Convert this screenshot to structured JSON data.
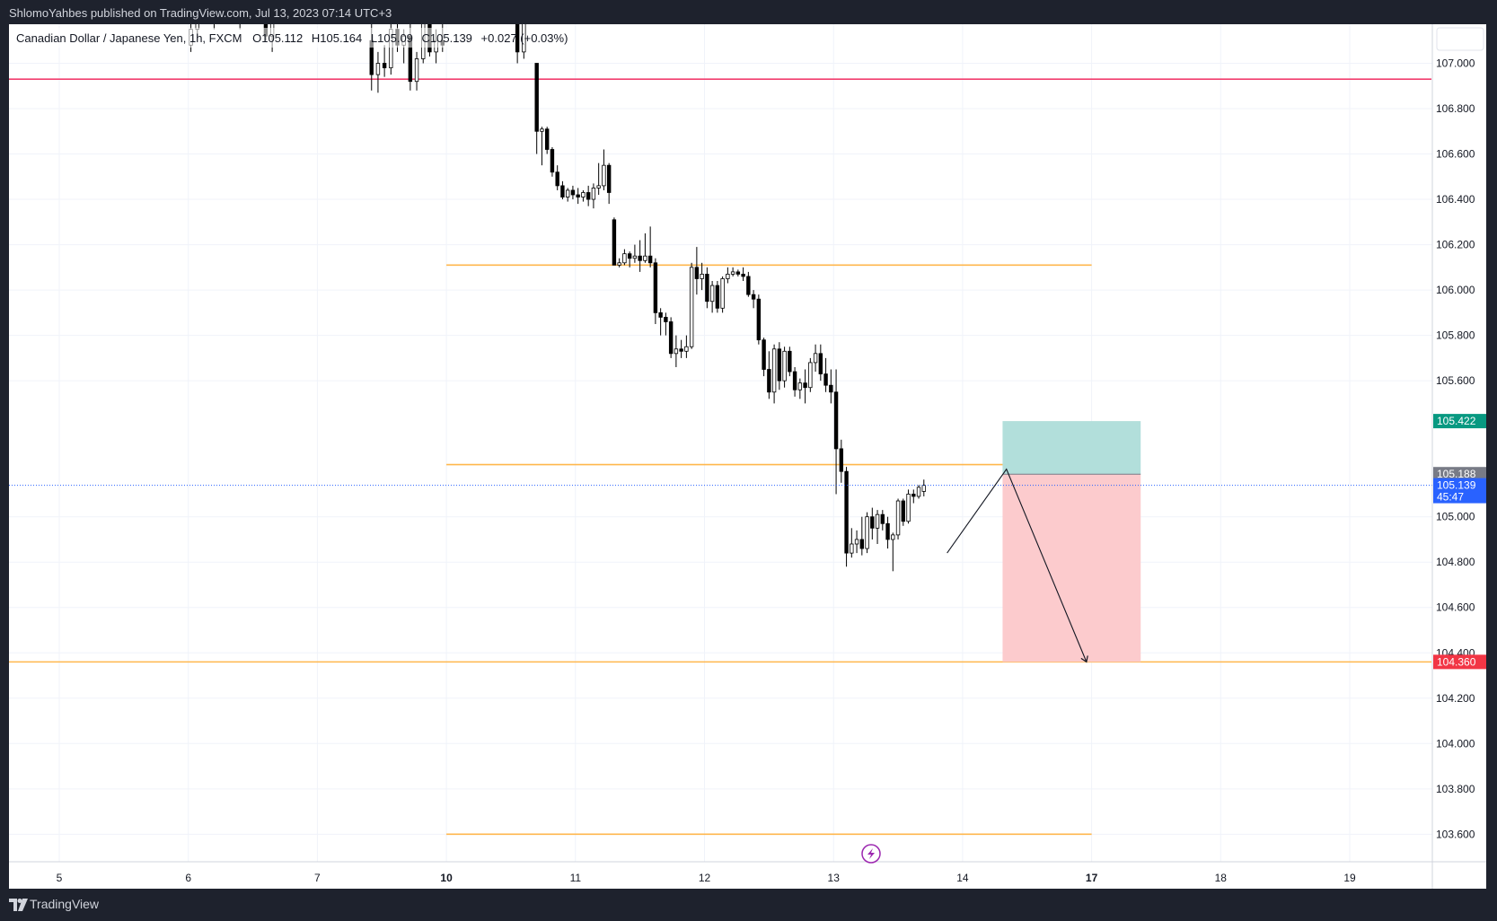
{
  "header": {
    "published": "ShlomoYahbes published on TradingView.com, Jul 13, 2023 07:14 UTC+3"
  },
  "legend": {
    "symbol": "Canadian Dollar / Japanese Yen, 1h, FXCM",
    "open": "O105.112",
    "high": "H105.164",
    "low": "L105.09",
    "close": "C105.139",
    "change": "+0.027 (+0.03%)"
  },
  "brand": {
    "name": "TradingView"
  },
  "chart_data": {
    "type": "candlestick",
    "timeframe": "1h",
    "x_ticks": [
      {
        "label": "5",
        "day": 5,
        "bold": false
      },
      {
        "label": "6",
        "day": 6,
        "bold": false
      },
      {
        "label": "7",
        "day": 7,
        "bold": false
      },
      {
        "label": "10",
        "day": 10,
        "bold": true
      },
      {
        "label": "11",
        "day": 11,
        "bold": false
      },
      {
        "label": "12",
        "day": 12,
        "bold": false
      },
      {
        "label": "13",
        "day": 13,
        "bold": false
      },
      {
        "label": "14",
        "day": 14,
        "bold": false
      },
      {
        "label": "17",
        "day": 17,
        "bold": true
      },
      {
        "label": "18",
        "day": 18,
        "bold": false
      },
      {
        "label": "19",
        "day": 19,
        "bold": false
      }
    ],
    "y_ticks": [
      "107.000",
      "106.800",
      "106.600",
      "106.400",
      "106.200",
      "106.000",
      "105.800",
      "105.600",
      "105.000",
      "104.800",
      "104.600",
      "104.400",
      "104.200",
      "104.000",
      "103.800",
      "103.600"
    ],
    "y_range": [
      103.45,
      107.2
    ],
    "candles": [
      [
        7.42,
        107.1,
        107.25,
        106.88,
        106.95
      ],
      [
        7.47,
        106.95,
        107.05,
        106.87,
        107.0
      ],
      [
        7.52,
        107.0,
        107.08,
        106.94,
        106.98
      ],
      [
        7.57,
        106.98,
        107.2,
        106.95,
        107.15
      ],
      [
        7.62,
        107.15,
        107.22,
        107.05,
        107.08
      ],
      [
        7.67,
        107.08,
        107.15,
        107.0,
        107.12
      ],
      [
        7.72,
        107.12,
        107.2,
        106.88,
        106.92
      ],
      [
        7.77,
        106.92,
        107.05,
        106.88,
        107.02
      ],
      [
        7.82,
        107.02,
        107.3,
        107.0,
        107.25
      ],
      [
        7.87,
        107.25,
        107.3,
        107.03,
        107.05
      ],
      [
        7.92,
        107.05,
        107.15,
        107.0,
        107.1
      ],
      [
        7.97,
        107.1,
        107.18,
        107.05,
        107.08
      ],
      [
        8.02,
        107.08,
        107.2,
        107.05,
        107.15
      ],
      [
        8.07,
        107.15,
        107.25,
        107.1,
        107.2
      ],
      [
        8.2,
        107.2,
        107.3,
        107.15,
        107.22
      ],
      [
        8.3,
        107.22,
        107.28,
        107.18,
        107.2
      ],
      [
        8.4,
        107.2,
        107.25,
        107.15,
        107.24
      ],
      [
        8.52,
        107.24,
        107.3,
        107.2,
        107.22
      ],
      [
        8.57,
        107.22,
        107.28,
        107.2,
        107.26
      ],
      [
        8.6,
        107.26,
        107.28,
        107.1,
        107.12
      ],
      [
        8.65,
        107.12,
        107.3,
        107.05,
        107.25
      ],
      [
        10.55,
        107.2,
        107.26,
        107.0,
        107.05
      ],
      [
        10.6,
        107.05,
        107.3,
        107.02,
        107.25
      ],
      [
        10.65,
        107.25,
        107.28,
        107.2,
        107.22
      ],
      [
        10.7,
        107.0,
        107.0,
        106.6,
        106.7
      ],
      [
        10.74,
        106.7,
        106.72,
        106.55,
        106.71
      ],
      [
        10.78,
        106.71,
        106.72,
        106.6,
        106.62
      ],
      [
        10.82,
        106.62,
        106.63,
        106.5,
        106.52
      ],
      [
        10.86,
        106.52,
        106.55,
        106.44,
        106.46
      ],
      [
        10.9,
        106.46,
        106.48,
        106.4,
        106.41
      ],
      [
        10.94,
        106.41,
        106.45,
        106.39,
        106.44
      ],
      [
        10.98,
        106.44,
        106.46,
        106.4,
        106.42
      ],
      [
        11.02,
        106.42,
        106.45,
        106.38,
        106.41
      ],
      [
        11.06,
        106.41,
        106.44,
        106.39,
        106.43
      ],
      [
        11.1,
        106.43,
        106.46,
        106.37,
        106.4
      ],
      [
        11.14,
        106.4,
        106.47,
        106.36,
        106.45
      ],
      [
        11.18,
        106.45,
        106.56,
        106.42,
        106.46
      ],
      [
        11.22,
        106.46,
        106.62,
        106.44,
        106.55
      ],
      [
        11.26,
        106.55,
        106.56,
        106.38,
        106.43
      ],
      [
        11.3,
        106.31,
        106.32,
        106.12,
        106.11
      ],
      [
        11.34,
        106.11,
        106.14,
        106.1,
        106.12
      ],
      [
        11.38,
        106.12,
        106.18,
        106.11,
        106.16
      ],
      [
        11.42,
        106.16,
        106.17,
        106.1,
        106.14
      ],
      [
        11.46,
        106.14,
        106.2,
        106.12,
        106.15
      ],
      [
        11.5,
        106.15,
        106.22,
        106.08,
        106.13
      ],
      [
        11.54,
        106.13,
        106.25,
        106.12,
        106.15
      ],
      [
        11.58,
        106.15,
        106.28,
        106.1,
        106.12
      ],
      [
        11.62,
        106.12,
        106.14,
        105.85,
        105.9
      ],
      [
        11.66,
        105.9,
        105.92,
        105.8,
        105.88
      ],
      [
        11.7,
        105.88,
        105.9,
        105.8,
        105.86
      ],
      [
        11.74,
        105.86,
        105.88,
        105.7,
        105.72
      ],
      [
        11.78,
        105.72,
        105.8,
        105.66,
        105.74
      ],
      [
        11.82,
        105.74,
        105.78,
        105.7,
        105.73
      ],
      [
        11.86,
        105.73,
        105.8,
        105.7,
        105.75
      ],
      [
        11.9,
        105.75,
        106.12,
        105.74,
        106.1
      ],
      [
        11.94,
        106.1,
        106.19,
        105.98,
        106.05
      ],
      [
        11.98,
        106.05,
        106.12,
        106.0,
        106.07
      ],
      [
        12.02,
        106.07,
        106.1,
        105.92,
        105.95
      ],
      [
        12.06,
        105.95,
        106.04,
        105.9,
        106.02
      ],
      [
        12.1,
        106.02,
        106.04,
        105.9,
        105.92
      ],
      [
        12.14,
        105.92,
        106.06,
        105.9,
        106.05
      ],
      [
        12.18,
        106.05,
        106.1,
        106.03,
        106.07
      ],
      [
        12.22,
        106.07,
        106.1,
        106.06,
        106.08
      ],
      [
        12.26,
        106.08,
        106.09,
        106.06,
        106.07
      ],
      [
        12.3,
        106.07,
        106.1,
        106.04,
        106.06
      ],
      [
        12.34,
        106.06,
        106.08,
        105.97,
        105.98
      ],
      [
        12.38,
        105.98,
        106.0,
        105.92,
        105.96
      ],
      [
        12.42,
        105.96,
        105.98,
        105.76,
        105.78
      ],
      [
        12.46,
        105.78,
        105.79,
        105.62,
        105.65
      ],
      [
        12.5,
        105.65,
        105.73,
        105.52,
        105.55
      ],
      [
        12.54,
        105.55,
        105.76,
        105.5,
        105.74
      ],
      [
        12.58,
        105.74,
        105.77,
        105.56,
        105.6
      ],
      [
        12.62,
        105.6,
        105.75,
        105.57,
        105.73
      ],
      [
        12.66,
        105.73,
        105.75,
        105.62,
        105.64
      ],
      [
        12.7,
        105.64,
        105.66,
        105.53,
        105.56
      ],
      [
        12.74,
        105.56,
        105.61,
        105.52,
        105.59
      ],
      [
        12.78,
        105.59,
        105.65,
        105.5,
        105.57
      ],
      [
        12.82,
        105.57,
        105.7,
        105.55,
        105.68
      ],
      [
        12.86,
        105.68,
        105.76,
        105.64,
        105.72
      ],
      [
        12.9,
        105.72,
        105.76,
        105.6,
        105.63
      ],
      [
        12.94,
        105.63,
        105.7,
        105.55,
        105.58
      ],
      [
        12.98,
        105.58,
        105.65,
        105.5,
        105.55
      ],
      [
        13.02,
        105.55,
        105.65,
        105.1,
        105.3
      ],
      [
        13.06,
        105.3,
        105.34,
        105.15,
        105.2
      ],
      [
        13.1,
        105.2,
        105.22,
        104.78,
        104.84
      ],
      [
        13.14,
        104.84,
        104.95,
        104.82,
        104.88
      ],
      [
        13.18,
        104.88,
        104.94,
        104.84,
        104.9
      ],
      [
        13.22,
        104.9,
        105.0,
        104.83,
        104.86
      ],
      [
        13.26,
        104.86,
        105.02,
        104.84,
        105.0
      ],
      [
        13.3,
        105.0,
        105.04,
        104.9,
        104.95
      ],
      [
        13.34,
        104.95,
        105.03,
        104.88,
        105.01
      ],
      [
        13.38,
        105.01,
        105.03,
        104.94,
        104.97
      ],
      [
        13.42,
        104.97,
        105.0,
        104.86,
        104.9
      ],
      [
        13.46,
        104.9,
        104.93,
        104.76,
        104.92
      ],
      [
        13.5,
        104.92,
        105.08,
        104.9,
        105.07
      ],
      [
        13.54,
        105.07,
        105.08,
        104.96,
        104.98
      ],
      [
        13.58,
        104.98,
        105.12,
        104.97,
        105.1
      ],
      [
        13.62,
        105.1,
        105.12,
        105.06,
        105.09
      ],
      [
        13.66,
        105.09,
        105.14,
        105.08,
        105.13
      ],
      [
        13.7,
        105.112,
        105.164,
        105.09,
        105.139
      ]
    ],
    "horizontal_lines": [
      {
        "price": 106.93,
        "color": "#f23f6e",
        "extended": true
      },
      {
        "price": 106.11,
        "color": "#ffb74d",
        "from_day": 10,
        "to_day": 17
      },
      {
        "price": 105.23,
        "color": "#ffb74d",
        "from_day": 10,
        "to_day": 17
      },
      {
        "price": 104.36,
        "color": "#ffb74d",
        "extended": true
      },
      {
        "price": 103.6,
        "color": "#ffb74d",
        "from_day": 10,
        "to_day": 17
      }
    ],
    "position": {
      "side": "short",
      "entry": 105.188,
      "stop": 105.422,
      "target": 104.36,
      "from_day": 14.31,
      "to_day": 17.38,
      "stop_color": "#b2dfdb",
      "target_color": "#fccbcd"
    },
    "projection": [
      {
        "day": 13.88,
        "price": 104.84
      },
      {
        "day": 14.34,
        "price": 105.21
      },
      {
        "day": 14.96,
        "price": 104.36
      }
    ],
    "price_labels": [
      {
        "text": "105.422",
        "price": 105.422,
        "bg": "#089981"
      },
      {
        "text": "105.188",
        "price": 105.188,
        "bg": "#787b86"
      },
      {
        "text": "105.139",
        "sub": "45:47",
        "price": 105.139,
        "bg": "#2962ff"
      },
      {
        "text": "104.360",
        "price": 104.36,
        "bg": "#f23645"
      }
    ],
    "current_price": 105.139,
    "countdown": "45:47",
    "colors": {
      "up": "#ffffff",
      "down": "#000000",
      "wick": "#000000",
      "grid": "#f0f3fa",
      "axis_text": "#131722"
    }
  }
}
